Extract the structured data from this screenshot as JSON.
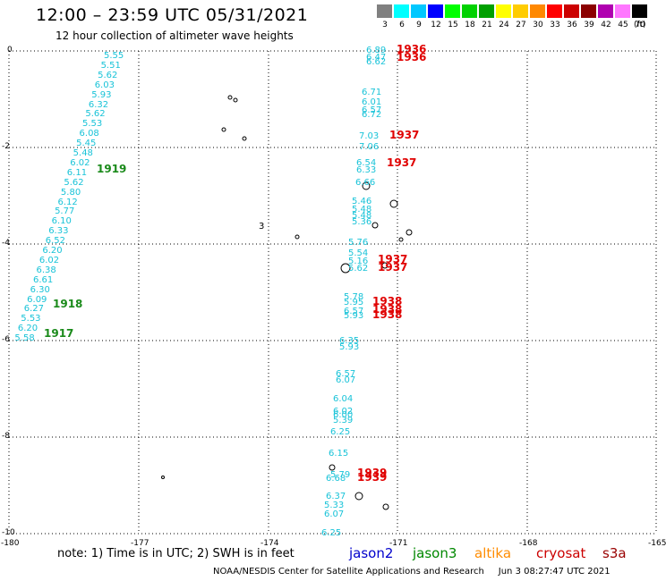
{
  "header": {
    "title": "12:00 – 23:59 UTC 05/31/2021",
    "subtitle": "12 hour collection of altimeter wave heights"
  },
  "legend": {
    "colors": [
      "#808080",
      "#00ffff",
      "#00c8ff",
      "#0000ff",
      "#00ff00",
      "#00d200",
      "#00a000",
      "#ffff00",
      "#ffcc00",
      "#ff8800",
      "#ff0000",
      "#cc0000",
      "#8b0000",
      "#b000b0",
      "#ff77ff",
      "#000000"
    ],
    "labels": [
      "3",
      "6",
      "9",
      "12",
      "15",
      "18",
      "21",
      "24",
      "27",
      "30",
      "33",
      "36",
      "39",
      "42",
      "45",
      "70"
    ],
    "unit": "(ft)"
  },
  "axes": {
    "y_ticks": [
      "0",
      "-2",
      "-4",
      "-6",
      "-8",
      "-10"
    ],
    "x_ticks": [
      "-180",
      "-177",
      "-174",
      "-171",
      "-168",
      "-165"
    ]
  },
  "map_labels": {
    "cyan_left_track": [
      "5.55",
      "5.51",
      "5.62",
      "6.03",
      "5.93",
      "6.32",
      "5.62",
      "5.53",
      "6.08",
      "5.45",
      "5.48",
      "6.02",
      "6.11",
      "5.62",
      "5.80",
      "6.12",
      "5.77",
      "6.10",
      "6.33",
      "6.52",
      "6.20",
      "6.02",
      "6.38",
      "6.61",
      "6.30",
      "6.09",
      "6.27",
      "5.53",
      "6.20",
      "5.58"
    ],
    "cyan_right_upper": [
      "6.89",
      "6.47",
      "6.62",
      "6.71",
      "6.01",
      "6.57",
      "6.72",
      "7.03",
      "7.06",
      "6.54",
      "6.33",
      "6.66",
      "5.46",
      "5.48",
      "5.48",
      "5.36"
    ],
    "cyan_right_middle": [
      "5.76",
      "5.54",
      "5.16",
      "5.62",
      "5.78",
      "5.95",
      "6.57",
      "5.93",
      "6.35",
      "5.93"
    ],
    "cyan_right_lower": [
      "6.57",
      "6.07",
      "6.04",
      "6.02",
      "6.00",
      "5.39",
      "6.25",
      "6.15",
      "5.79",
      "6.68",
      "6.37",
      "5.33",
      "6.07",
      "6.25"
    ],
    "red_times": [
      "1936",
      "1936",
      "1937",
      "1937",
      "1937",
      "1937",
      "1938",
      "1938",
      "1938",
      "1939",
      "1939"
    ],
    "green_times": [
      "1919",
      "1918",
      "1917"
    ],
    "stray_numeral": "3"
  },
  "footer": {
    "note": "note:  1) Time is in UTC;  2) SWH is in feet",
    "satellites": [
      {
        "name": "jason2",
        "color": "#0000cc"
      },
      {
        "name": "jason3",
        "color": "#008800"
      },
      {
        "name": "altika",
        "color": "#ff8c00"
      },
      {
        "name": "cryosat",
        "color": "#cc0000"
      },
      {
        "name": "s3a",
        "color": "#990000"
      }
    ],
    "credit": "NOAA/NESDIS Center for Satellite Applications and Research",
    "timestamp": "Jun  3 08:27:47 UTC 2021"
  }
}
